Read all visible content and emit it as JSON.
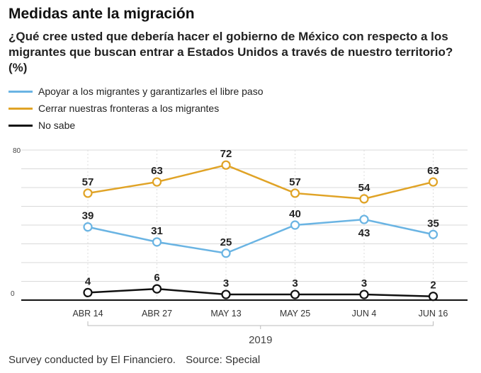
{
  "header": {
    "title": "Medidas ante la migración",
    "subtitle": "¿Qué cree usted que debería hacer el gobierno de México con respecto a los migrantes que buscan entrar a Estados Unidos a través de nuestro territorio? (%)"
  },
  "footer": {
    "survey": "Survey conducted by El Financiero.",
    "source": "Source: Special"
  },
  "chart_data": {
    "type": "line",
    "title": "",
    "xlabel": "2019",
    "ylabel": "",
    "ylim": [
      0,
      80
    ],
    "y_ticks": [
      "0",
      "80"
    ],
    "grid": true,
    "legend_position": "top-left",
    "categories": [
      "ABR 14",
      "ABR 27",
      "MAY 13",
      "MAY 25",
      "JUN 4",
      "JUN 16"
    ],
    "series": [
      {
        "name": "Apoyar a los migrantes y garantizarles el libre paso",
        "color": "#6ab4e3",
        "values": [
          39,
          31,
          25,
          40,
          43,
          35
        ],
        "labels": [
          "39",
          "31",
          "25",
          "40",
          "43",
          "35"
        ]
      },
      {
        "name": "Cerrar nuestras fronteras a los migrantes",
        "color": "#e0a326",
        "values": [
          57,
          63,
          72,
          57,
          54,
          63
        ],
        "labels": [
          "57",
          "63",
          "72",
          "57",
          "54",
          "63"
        ]
      },
      {
        "name": "No sabe",
        "color": "#111111",
        "values": [
          4,
          6,
          3,
          3,
          3,
          2
        ],
        "labels": [
          "4",
          "6",
          "3",
          "3",
          "3",
          "2"
        ]
      }
    ]
  }
}
